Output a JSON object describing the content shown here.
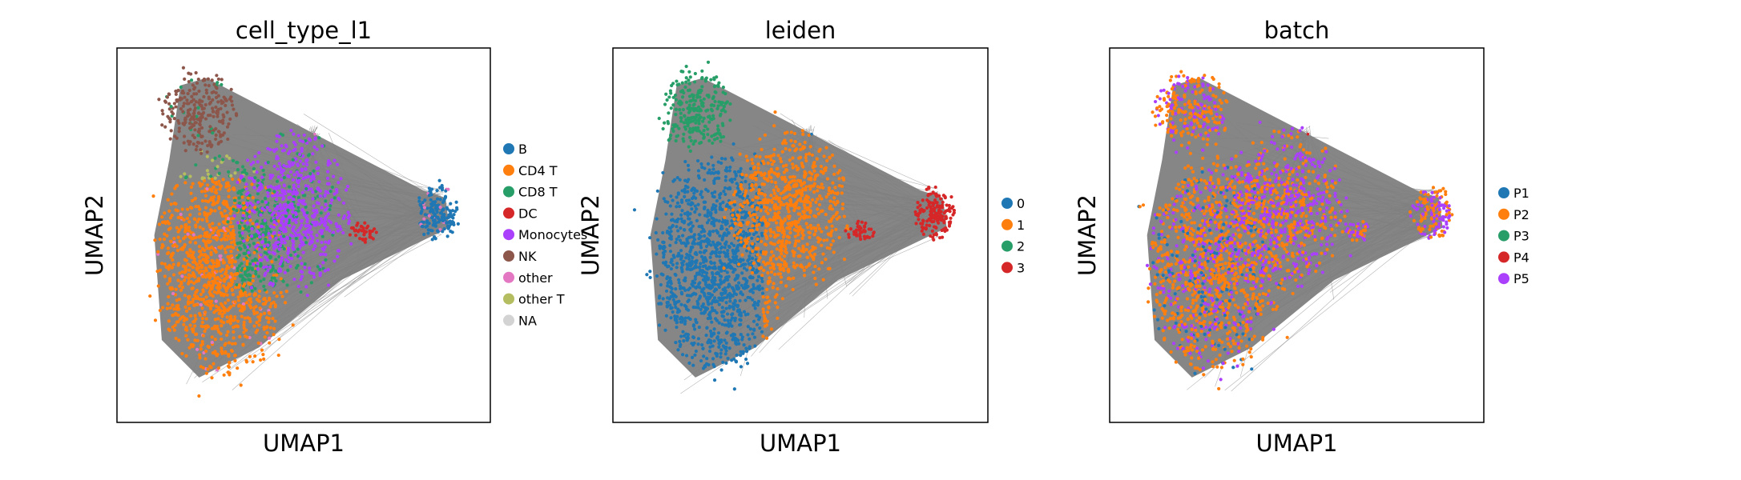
{
  "chart_data": [
    {
      "type": "scatter",
      "title": "cell_type_l1",
      "xlabel": "UMAP1",
      "ylabel": "UMAP2",
      "grid": false,
      "ticks": false,
      "legend_placement": "right",
      "background_edges": "gray PAGA-style connectivity lines",
      "legend": [
        {
          "label": "B",
          "color": "#1f77b4"
        },
        {
          "label": "CD4 T",
          "color": "#ff7f0e"
        },
        {
          "label": "CD8 T",
          "color": "#279e68"
        },
        {
          "label": "DC",
          "color": "#d62728"
        },
        {
          "label": "Monocytes",
          "color": "#aa40fc"
        },
        {
          "label": "NK",
          "color": "#8c564b"
        },
        {
          "label": "other",
          "color": "#e377c2"
        },
        {
          "label": "other T",
          "color": "#b5bd61"
        },
        {
          "label": "NA",
          "color": "#d3d3d3"
        }
      ]
    },
    {
      "type": "scatter",
      "title": "leiden",
      "xlabel": "UMAP1",
      "ylabel": "UMAP2",
      "grid": false,
      "ticks": false,
      "legend_placement": "right",
      "background_edges": "gray PAGA-style connectivity lines",
      "legend": [
        {
          "label": "0",
          "color": "#1f77b4"
        },
        {
          "label": "1",
          "color": "#ff7f0e"
        },
        {
          "label": "2",
          "color": "#279e68"
        },
        {
          "label": "3",
          "color": "#d62728"
        }
      ]
    },
    {
      "type": "scatter",
      "title": "batch",
      "xlabel": "UMAP1",
      "ylabel": "UMAP2",
      "grid": false,
      "ticks": false,
      "legend_placement": "right",
      "background_edges": "gray PAGA-style connectivity lines",
      "legend": [
        {
          "label": "P1",
          "color": "#1f77b4"
        },
        {
          "label": "P2",
          "color": "#ff7f0e"
        },
        {
          "label": "P3",
          "color": "#279e68"
        },
        {
          "label": "P4",
          "color": "#d62728"
        },
        {
          "label": "P5",
          "color": "#aa40fc"
        }
      ]
    }
  ],
  "colors": {
    "edge_gray": "#808080",
    "frame": "#000000"
  }
}
